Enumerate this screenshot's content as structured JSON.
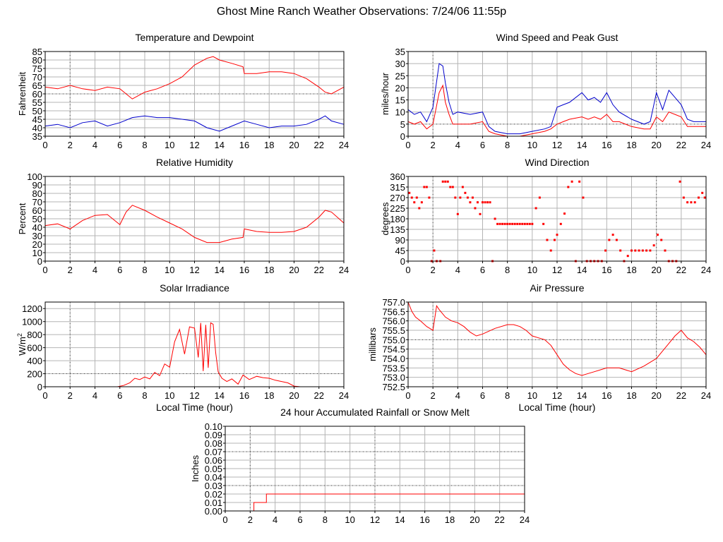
{
  "page_title": "Ghost Mine Ranch Weather Observations: 7/24/06 11:55p",
  "colors": {
    "red": "#ff0000",
    "blue": "#0000cc",
    "grid": "#b4b4b4",
    "axis": "#000000"
  },
  "chart_data": [
    {
      "id": "temp",
      "type": "line",
      "title": "Temperature and Dewpoint",
      "ylabel": "Fahrenheit",
      "xlabel": "",
      "xlim": [
        0,
        24
      ],
      "ylim": [
        35,
        85
      ],
      "xticks": [
        0,
        2,
        4,
        6,
        8,
        10,
        12,
        14,
        16,
        18,
        20,
        22,
        24
      ],
      "yticks": [
        35,
        40,
        45,
        50,
        55,
        60,
        65,
        70,
        75,
        80,
        85
      ],
      "ytick_labels": [
        "35",
        "40",
        "45",
        "50",
        "55",
        "60",
        "65",
        "70",
        "75",
        "80",
        "85"
      ],
      "ref_y": [
        60
      ],
      "series": [
        {
          "name": "Temperature",
          "color": "#ff0000",
          "style": "line",
          "x": [
            0,
            1,
            2,
            3,
            4,
            5,
            6,
            7,
            8,
            9,
            10,
            11,
            12,
            13,
            13.5,
            14,
            15,
            15.9,
            16,
            17,
            18,
            19,
            20,
            21,
            22,
            22.5,
            23,
            24
          ],
          "y": [
            64,
            63,
            65,
            63,
            62,
            64,
            63,
            57,
            61,
            63,
            66,
            70,
            77,
            81,
            82,
            80,
            78,
            76,
            72,
            72,
            73,
            73,
            72,
            69,
            64,
            61,
            60,
            64
          ]
        },
        {
          "name": "Dewpoint",
          "color": "#0000cc",
          "style": "line",
          "x": [
            0,
            1,
            2,
            3,
            4,
            5,
            6,
            7,
            8,
            9,
            10,
            11,
            12,
            13,
            14,
            15,
            16,
            17,
            18,
            19,
            20,
            21,
            22,
            22.5,
            23,
            24
          ],
          "y": [
            41,
            42,
            40,
            43,
            44,
            41,
            43,
            46,
            47,
            46,
            46,
            45,
            44,
            40,
            38,
            41,
            44,
            42,
            40,
            41,
            41,
            42,
            45,
            47,
            44,
            42
          ]
        }
      ]
    },
    {
      "id": "wind",
      "type": "line",
      "title": "Wind Speed and Peak Gust",
      "ylabel": "miles/hour",
      "xlabel": "",
      "xlim": [
        0,
        24
      ],
      "ylim": [
        0,
        35
      ],
      "xticks": [
        0,
        2,
        4,
        6,
        8,
        10,
        12,
        14,
        16,
        18,
        20,
        22,
        24
      ],
      "yticks": [
        0,
        5,
        10,
        15,
        20,
        25,
        30,
        35
      ],
      "ytick_labels": [
        "0",
        "5",
        "10",
        "15",
        "20",
        "25",
        "30",
        "35"
      ],
      "ref_y": [
        5
      ],
      "series": [
        {
          "name": "Peak Gust",
          "color": "#0000cc",
          "style": "line",
          "x": [
            0,
            0.5,
            1,
            1.5,
            2,
            2.5,
            2.8,
            3,
            3.3,
            3.6,
            4,
            5,
            6,
            6.5,
            7,
            8,
            9,
            10,
            11,
            11.5,
            12,
            12.5,
            13,
            14,
            14.5,
            15,
            15.5,
            16,
            16.5,
            17,
            18,
            19,
            19.5,
            20,
            20.5,
            21,
            21.5,
            22,
            22.5,
            23,
            24
          ],
          "y": [
            11,
            9,
            10,
            6,
            12,
            30,
            29,
            22,
            14,
            9,
            10,
            9,
            10,
            4,
            2,
            1,
            1,
            2,
            3,
            4,
            12,
            13,
            14,
            18,
            15,
            16,
            14,
            18,
            13,
            10,
            7,
            5,
            6,
            18,
            11,
            19,
            16,
            13,
            7,
            6,
            6
          ]
        },
        {
          "name": "Wind Speed",
          "color": "#ff0000",
          "style": "line",
          "x": [
            0,
            0.5,
            1,
            1.5,
            2,
            2.5,
            2.8,
            3,
            3.3,
            3.6,
            4,
            5,
            6,
            6.5,
            7,
            8,
            9,
            10,
            11,
            11.5,
            12,
            12.5,
            13,
            14,
            14.5,
            15,
            15.5,
            16,
            16.5,
            17,
            18,
            19,
            19.5,
            20,
            20.5,
            21,
            21.5,
            22,
            22.5,
            23,
            24
          ],
          "y": [
            6,
            5,
            6,
            3,
            5,
            18,
            21,
            14,
            9,
            5,
            5,
            5,
            6,
            2,
            1,
            0,
            0,
            1,
            2,
            3,
            5,
            6,
            7,
            8,
            7,
            8,
            7,
            9,
            6,
            6,
            4,
            3,
            3,
            8,
            6,
            10,
            9,
            8,
            4,
            4,
            4
          ]
        }
      ]
    },
    {
      "id": "humidity",
      "type": "line",
      "title": "Relative Humidity",
      "ylabel": "Percent",
      "xlabel": "",
      "xlim": [
        0,
        24
      ],
      "ylim": [
        0,
        100
      ],
      "xticks": [
        0,
        2,
        4,
        6,
        8,
        10,
        12,
        14,
        16,
        18,
        20,
        22,
        24
      ],
      "yticks": [
        0,
        10,
        20,
        30,
        40,
        50,
        60,
        70,
        80,
        90,
        100
      ],
      "ytick_labels": [
        "0",
        "10",
        "20",
        "30",
        "40",
        "50",
        "60",
        "70",
        "80",
        "90",
        "100"
      ],
      "ref_y": [],
      "series": [
        {
          "name": "Relative Humidity",
          "color": "#ff0000",
          "style": "line",
          "x": [
            0,
            1,
            2,
            3,
            4,
            5,
            6,
            6.5,
            7,
            8,
            9,
            10,
            11,
            12,
            13,
            14,
            15,
            15.9,
            16,
            17,
            18,
            19,
            20,
            21,
            22,
            22.5,
            23,
            24
          ],
          "y": [
            42,
            44,
            38,
            48,
            54,
            55,
            43,
            58,
            66,
            60,
            52,
            45,
            38,
            28,
            22,
            22,
            26,
            28,
            38,
            35,
            34,
            34,
            35,
            40,
            52,
            60,
            58,
            45
          ]
        }
      ]
    },
    {
      "id": "winddir",
      "type": "scatter",
      "title": "Wind Direction",
      "ylabel": "degrees",
      "xlabel": "",
      "xlim": [
        0,
        24
      ],
      "ylim": [
        0,
        360
      ],
      "xticks": [
        0,
        2,
        4,
        6,
        8,
        10,
        12,
        14,
        16,
        18,
        20,
        22,
        24
      ],
      "yticks": [
        0,
        45,
        90,
        135,
        180,
        225,
        270,
        315,
        360
      ],
      "ytick_labels": [
        "0",
        "45",
        "90",
        "135",
        "180",
        "225",
        "270",
        "315",
        "360"
      ],
      "ref_y": [],
      "series": [
        {
          "name": "Wind Direction",
          "color": "#ff0000",
          "style": "points",
          "x": [
            0.1,
            0.3,
            0.5,
            0.7,
            0.9,
            1.1,
            1.3,
            1.5,
            1.7,
            1.9,
            2.1,
            2.3,
            2.6,
            2.8,
            3.0,
            3.2,
            3.4,
            3.6,
            3.8,
            4.0,
            4.2,
            4.4,
            4.6,
            4.8,
            5.0,
            5.2,
            5.4,
            5.6,
            5.8,
            6.0,
            6.2,
            6.4,
            6.6,
            6.8,
            7.0,
            7.2,
            7.4,
            7.6,
            7.8,
            8.0,
            8.2,
            8.4,
            8.6,
            8.8,
            9.0,
            9.2,
            9.4,
            9.6,
            9.8,
            10.0,
            10.3,
            10.6,
            10.9,
            11.2,
            11.5,
            11.8,
            12.0,
            12.3,
            12.6,
            12.9,
            13.2,
            13.5,
            13.8,
            14.1,
            14.4,
            14.7,
            15.0,
            15.3,
            15.6,
            15.9,
            16.2,
            16.5,
            16.8,
            17.1,
            17.4,
            17.7,
            18.0,
            18.3,
            18.6,
            18.9,
            19.2,
            19.5,
            19.8,
            20.1,
            20.4,
            20.7,
            21.0,
            21.3,
            21.6,
            21.9,
            22.2,
            22.5,
            22.8,
            23.1,
            23.4,
            23.7,
            23.9
          ],
          "y": [
            290,
            270,
            250,
            270,
            225,
            250,
            315,
            315,
            270,
            0,
            45,
            0,
            0,
            338,
            338,
            338,
            315,
            315,
            270,
            200,
            270,
            315,
            290,
            270,
            250,
            270,
            225,
            250,
            200,
            250,
            250,
            250,
            250,
            0,
            180,
            158,
            158,
            158,
            158,
            158,
            158,
            158,
            158,
            158,
            158,
            158,
            158,
            158,
            158,
            158,
            225,
            270,
            158,
            90,
            45,
            90,
            112,
            158,
            202,
            315,
            338,
            0,
            338,
            270,
            0,
            0,
            0,
            0,
            0,
            45,
            90,
            112,
            90,
            45,
            0,
            22,
            45,
            45,
            45,
            45,
            45,
            45,
            67,
            112,
            90,
            45,
            0,
            0,
            0,
            338,
            270,
            250,
            250,
            250,
            270,
            290,
            270
          ]
        }
      ]
    },
    {
      "id": "solar",
      "type": "line",
      "title": "Solar Irradiance",
      "ylabel": "W/m2",
      "xlabel": "Local Time (hour)",
      "xlim": [
        0,
        24
      ],
      "ylim": [
        0,
        1300
      ],
      "xticks": [
        0,
        2,
        4,
        6,
        8,
        10,
        12,
        14,
        16,
        18,
        20,
        22,
        24
      ],
      "yticks": [
        0,
        200,
        400,
        600,
        800,
        1000,
        1200
      ],
      "ytick_labels": [
        "0",
        "200",
        "400",
        "600",
        "800",
        "1000",
        "1200"
      ],
      "ref_y": [
        200
      ],
      "series": [
        {
          "name": "Solar Irradiance",
          "color": "#ff0000",
          "style": "line",
          "x": [
            0,
            5.8,
            6.3,
            6.8,
            7.2,
            7.6,
            8,
            8.4,
            8.8,
            9.2,
            9.6,
            10,
            10.4,
            10.8,
            11.2,
            11.6,
            12,
            12.3,
            12.5,
            12.7,
            12.9,
            13.1,
            13.3,
            13.5,
            13.7,
            13.9,
            14.2,
            14.6,
            15,
            15.5,
            15.9,
            16.4,
            17,
            17.5,
            18,
            18.5,
            19,
            19.5,
            20,
            20.5,
            24
          ],
          "y": [
            0,
            0,
            20,
            60,
            130,
            110,
            150,
            120,
            220,
            170,
            350,
            300,
            690,
            880,
            500,
            920,
            900,
            450,
            980,
            240,
            950,
            290,
            980,
            960,
            520,
            230,
            130,
            80,
            120,
            40,
            180,
            110,
            160,
            140,
            130,
            100,
            80,
            60,
            10,
            0,
            0
          ]
        }
      ]
    },
    {
      "id": "pressure",
      "type": "line",
      "title": "Air Pressure",
      "ylabel": "millibars",
      "xlabel": "Local Time (hour)",
      "xlim": [
        0,
        24
      ],
      "ylim": [
        752.5,
        757.0
      ],
      "xticks": [
        0,
        2,
        4,
        6,
        8,
        10,
        12,
        14,
        16,
        18,
        20,
        22,
        24
      ],
      "yticks": [
        752.5,
        753.0,
        753.5,
        754.0,
        754.5,
        755.0,
        755.5,
        756.0,
        756.5,
        757.0
      ],
      "ytick_labels": [
        "752.5",
        "753.0",
        "753.5",
        "754.0",
        "754.5",
        "755.0",
        "755.5",
        "756.0",
        "756.5",
        "757.0"
      ],
      "ref_y": [
        755.0
      ],
      "series": [
        {
          "name": "Air Pressure",
          "color": "#ff0000",
          "style": "line",
          "x": [
            0,
            0.3,
            0.6,
            1,
            1.5,
            2,
            2.3,
            2.5,
            3,
            3.5,
            4,
            4.5,
            5,
            5.5,
            6,
            7,
            8,
            8.5,
            9,
            9.5,
            10,
            10.5,
            11,
            11.5,
            12,
            12.5,
            13,
            13.5,
            14,
            14.5,
            15,
            15.5,
            16,
            17,
            18,
            19,
            19.5,
            20,
            20.5,
            21,
            21.5,
            22,
            22.5,
            23,
            23.5,
            24
          ],
          "y": [
            757.0,
            756.5,
            756.2,
            756.0,
            755.7,
            755.5,
            756.8,
            756.6,
            756.2,
            756.0,
            755.9,
            755.7,
            755.4,
            755.2,
            755.3,
            755.6,
            755.8,
            755.8,
            755.7,
            755.5,
            755.2,
            755.1,
            755.0,
            754.7,
            754.2,
            753.7,
            753.4,
            753.2,
            753.1,
            753.2,
            753.3,
            753.4,
            753.5,
            753.5,
            753.3,
            753.6,
            753.8,
            754.0,
            754.4,
            754.8,
            755.2,
            755.5,
            755.1,
            754.9,
            754.6,
            754.2
          ]
        }
      ]
    },
    {
      "id": "rain",
      "type": "line",
      "title": "24 hour Accumulated Rainfall or Snow Melt",
      "ylabel": "Inches",
      "xlabel": "",
      "xlim": [
        0,
        24
      ],
      "ylim": [
        0,
        0.1
      ],
      "xticks": [
        0,
        2,
        4,
        6,
        8,
        10,
        12,
        14,
        16,
        18,
        20,
        22,
        24
      ],
      "yticks": [
        0,
        0.01,
        0.02,
        0.03,
        0.04,
        0.05,
        0.06,
        0.07,
        0.08,
        0.09,
        0.1
      ],
      "ytick_labels": [
        "0.00",
        "0.01",
        "0.02",
        "0.03",
        "0.04",
        "0.05",
        "0.06",
        "0.07",
        "0.08",
        "0.09",
        "0.10"
      ],
      "ref_y": [
        0.03,
        0.07
      ],
      "series": [
        {
          "name": "Accumulated Rainfall",
          "color": "#ff0000",
          "style": "step",
          "x": [
            0,
            2.3,
            2.3,
            3.3,
            3.3,
            24
          ],
          "y": [
            0,
            0,
            0.01,
            0.01,
            0.02,
            0.02
          ]
        }
      ]
    }
  ]
}
